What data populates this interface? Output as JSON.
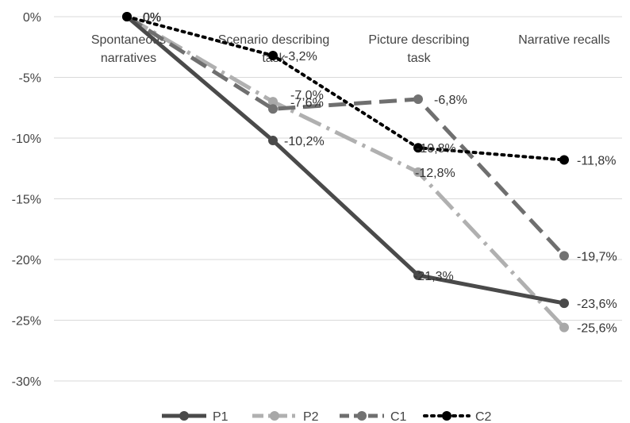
{
  "chart_data": {
    "type": "line",
    "categories": [
      [
        "Spontaneous",
        "narratives"
      ],
      [
        "Scenario describing",
        "task"
      ],
      [
        "Picture describing",
        "task"
      ],
      [
        "Narrative recalls"
      ]
    ],
    "ylim": [
      -30,
      0
    ],
    "yticks": [
      0,
      -5,
      -10,
      -15,
      -20,
      -25,
      -30
    ],
    "ytick_labels": [
      "0%",
      "-5%",
      "-10%",
      "-15%",
      "-20%",
      "-25%",
      "-30%"
    ],
    "grid": true,
    "legend_position": "bottom",
    "series": [
      {
        "name": "P1",
        "values": [
          0,
          -10.2,
          -21.3,
          -23.6
        ],
        "labels": [
          "0%",
          "-10,2%",
          "-21,3%",
          "-23,6%"
        ],
        "color": "#4a4a4a",
        "dash": "solid",
        "marker_color": "#4a4a4a"
      },
      {
        "name": "P2",
        "values": [
          0,
          -7.0,
          -12.8,
          -25.6
        ],
        "labels": [
          "0%",
          "-7,0%",
          "-12,8%",
          "-25,6%"
        ],
        "color": "#b0b0b0",
        "dash": "dashdot",
        "marker_color": "#a8a8a8"
      },
      {
        "name": "C1",
        "values": [
          0,
          -7.6,
          -6.8,
          -19.7
        ],
        "labels": [
          "0%",
          "-7,6%",
          "-6,8%",
          "-19,7%"
        ],
        "color": "#6f6f6f",
        "dash": "longdash",
        "marker_color": "#727272"
      },
      {
        "name": "C2",
        "values": [
          0,
          -3.2,
          -10.8,
          -11.8
        ],
        "labels": [
          "0%",
          "-3,2%",
          "-10,8%",
          "-11,8%"
        ],
        "color": "#000000",
        "dash": "dot",
        "marker_color": "#000000"
      }
    ]
  }
}
